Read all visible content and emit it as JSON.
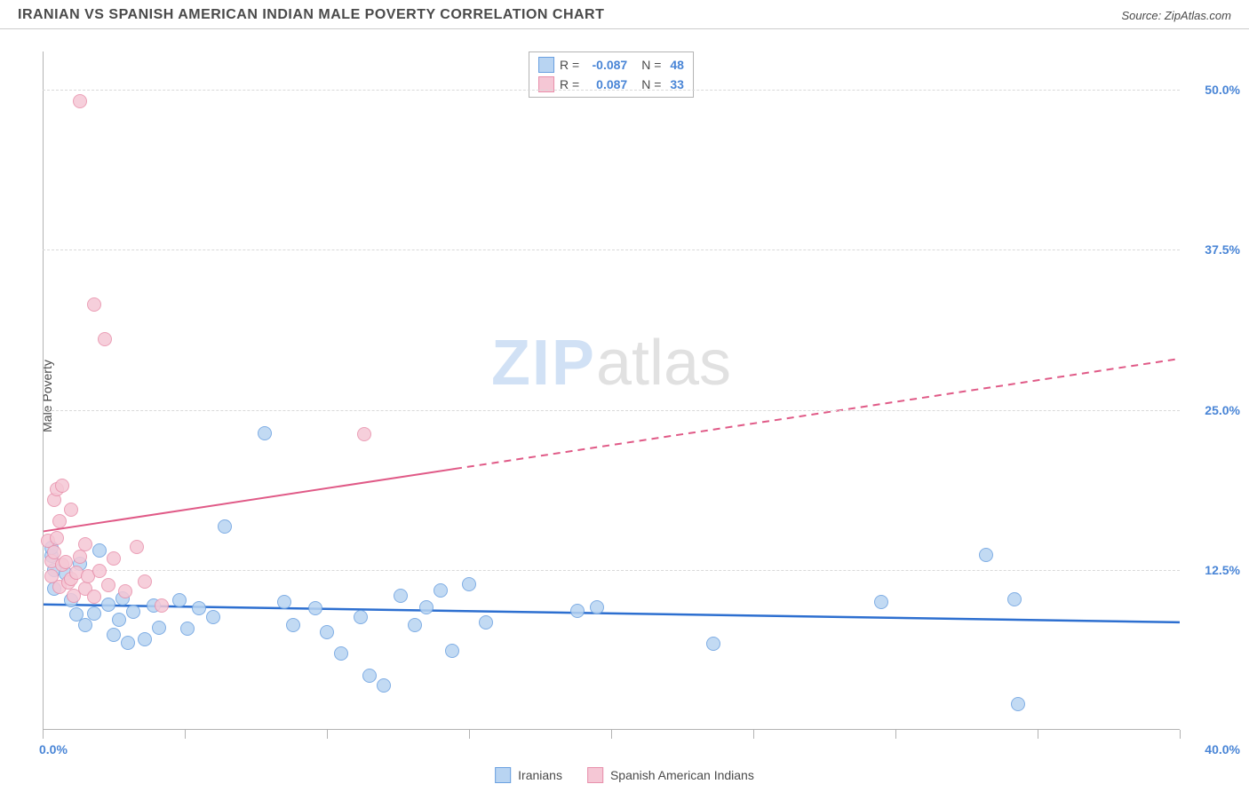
{
  "header": {
    "title": "IRANIAN VS SPANISH AMERICAN INDIAN MALE POVERTY CORRELATION CHART",
    "source_label": "Source: ",
    "source_value": "ZipAtlas.com"
  },
  "watermark": {
    "a": "ZIP",
    "b": "atlas"
  },
  "chart": {
    "type": "scatter",
    "ylabel": "Male Poverty",
    "xlim": [
      0,
      40
    ],
    "ylim": [
      0,
      53
    ],
    "xtick_positions": [
      0,
      5,
      10,
      15,
      20,
      25,
      30,
      35,
      40
    ],
    "xtick_labels_shown": {
      "first": "0.0%",
      "last": "40.0%"
    },
    "ytick_positions": [
      12.5,
      25.0,
      37.5,
      50.0
    ],
    "ytick_labels": [
      "12.5%",
      "25.0%",
      "37.5%",
      "50.0%"
    ],
    "grid_color": "#d9d9d9",
    "axis_color": "#b3b3b3",
    "background_color": "#ffffff",
    "marker_radius": 8,
    "marker_border_opacity": 0.9,
    "marker_fill_opacity": 0.35,
    "series": [
      {
        "name": "Iranians",
        "color_border": "#6aa0e0",
        "color_fill": "#b8d4f2",
        "R": "-0.087",
        "N": "48",
        "trend": {
          "x1": 0,
          "y1": 9.8,
          "x2": 40,
          "y2": 8.4,
          "color": "#2d6fd0",
          "width": 2.5,
          "dash_after_x": null
        },
        "points": [
          [
            0.3,
            13.6
          ],
          [
            0.3,
            14.2
          ],
          [
            0.4,
            12.5
          ],
          [
            0.4,
            11.0
          ],
          [
            0.8,
            12.2
          ],
          [
            1.0,
            10.1
          ],
          [
            1.2,
            9.0
          ],
          [
            1.3,
            13.0
          ],
          [
            1.5,
            8.2
          ],
          [
            1.8,
            9.1
          ],
          [
            2.0,
            14.0
          ],
          [
            2.3,
            9.8
          ],
          [
            2.5,
            7.4
          ],
          [
            2.7,
            8.6
          ],
          [
            2.8,
            10.3
          ],
          [
            3.0,
            6.8
          ],
          [
            3.2,
            9.2
          ],
          [
            3.6,
            7.1
          ],
          [
            3.9,
            9.7
          ],
          [
            4.1,
            8.0
          ],
          [
            4.8,
            10.1
          ],
          [
            5.1,
            7.9
          ],
          [
            5.5,
            9.5
          ],
          [
            6.0,
            8.8
          ],
          [
            6.4,
            15.9
          ],
          [
            7.8,
            23.2
          ],
          [
            8.5,
            10.0
          ],
          [
            8.8,
            8.2
          ],
          [
            9.6,
            9.5
          ],
          [
            10.0,
            7.6
          ],
          [
            10.5,
            6.0
          ],
          [
            11.2,
            8.8
          ],
          [
            11.5,
            4.2
          ],
          [
            12.0,
            3.5
          ],
          [
            12.6,
            10.5
          ],
          [
            13.1,
            8.2
          ],
          [
            13.5,
            9.6
          ],
          [
            14.0,
            10.9
          ],
          [
            14.4,
            6.2
          ],
          [
            15.0,
            11.4
          ],
          [
            15.6,
            8.4
          ],
          [
            18.8,
            9.3
          ],
          [
            19.5,
            9.6
          ],
          [
            23.6,
            6.7
          ],
          [
            29.5,
            10.0
          ],
          [
            33.2,
            13.7
          ],
          [
            34.3,
            2.0
          ],
          [
            34.2,
            10.2
          ]
        ]
      },
      {
        "name": "Spanish American Indians",
        "color_border": "#e890ab",
        "color_fill": "#f5c7d5",
        "R": "0.087",
        "N": "33",
        "trend": {
          "x1": 0,
          "y1": 15.5,
          "x2": 40,
          "y2": 29.0,
          "color": "#e05a87",
          "width": 2,
          "dash_after_x": 14.5
        },
        "points": [
          [
            0.2,
            14.8
          ],
          [
            0.3,
            12.0
          ],
          [
            0.3,
            13.2
          ],
          [
            0.4,
            13.9
          ],
          [
            0.4,
            18.0
          ],
          [
            0.5,
            15.0
          ],
          [
            0.5,
            18.8
          ],
          [
            0.6,
            11.2
          ],
          [
            0.6,
            16.3
          ],
          [
            0.7,
            12.9
          ],
          [
            0.7,
            19.1
          ],
          [
            0.8,
            13.1
          ],
          [
            0.9,
            11.5
          ],
          [
            1.0,
            11.8
          ],
          [
            1.0,
            17.2
          ],
          [
            1.1,
            10.5
          ],
          [
            1.2,
            12.3
          ],
          [
            1.3,
            13.5
          ],
          [
            1.3,
            49.1
          ],
          [
            1.5,
            11.0
          ],
          [
            1.5,
            14.5
          ],
          [
            1.6,
            12.0
          ],
          [
            1.8,
            33.2
          ],
          [
            1.8,
            10.4
          ],
          [
            2.0,
            12.4
          ],
          [
            2.2,
            30.5
          ],
          [
            2.3,
            11.3
          ],
          [
            2.5,
            13.4
          ],
          [
            2.9,
            10.8
          ],
          [
            3.3,
            14.3
          ],
          [
            3.6,
            11.6
          ],
          [
            4.2,
            9.7
          ],
          [
            11.3,
            23.1
          ]
        ]
      }
    ],
    "legend_top_rows": [
      {
        "swatch_fill": "#b8d4f2",
        "swatch_border": "#6aa0e0",
        "r_label": "R =",
        "r_value": "-0.087",
        "n_label": "N =",
        "n_value": "48"
      },
      {
        "swatch_fill": "#f5c7d5",
        "swatch_border": "#e890ab",
        "r_label": "R =",
        "r_value": "0.087",
        "n_label": "N =",
        "n_value": "33"
      }
    ],
    "legend_bottom": [
      {
        "swatch_fill": "#b8d4f2",
        "swatch_border": "#6aa0e0",
        "label": "Iranians"
      },
      {
        "swatch_fill": "#f5c7d5",
        "swatch_border": "#e890ab",
        "label": "Spanish American Indians"
      }
    ]
  }
}
